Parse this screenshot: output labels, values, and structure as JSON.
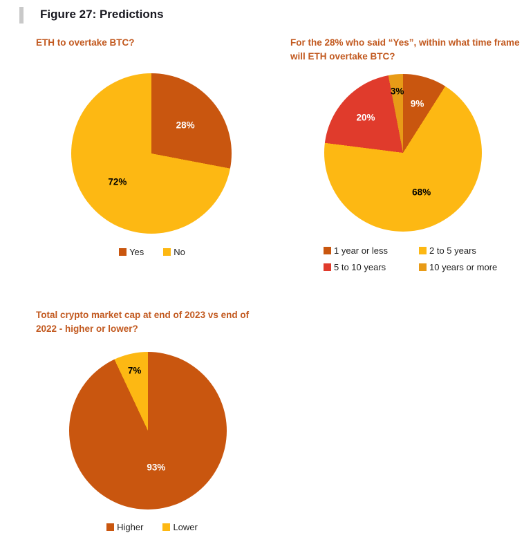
{
  "page": {
    "figure_title": "Figure 27: Predictions"
  },
  "chart_data": [
    {
      "type": "pie",
      "title": "ETH to overtake BTC?",
      "labels": [
        "Yes",
        "No"
      ],
      "values": [
        28,
        72
      ],
      "data_labels": [
        "28%",
        "72%"
      ],
      "slice_colors": [
        "#C9560F",
        "#FDB813"
      ],
      "label_text_colors": [
        "#FFFFFF",
        "#000000"
      ],
      "legend_position": "bottom",
      "start_angle": "top, clockwise"
    },
    {
      "type": "pie",
      "title": "For the 28% who said “Yes”, within what time frame will ETH overtake BTC?",
      "labels": [
        "1 year or less",
        "2 to 5 years",
        "5 to 10 years",
        "10 years or more"
      ],
      "values": [
        9,
        68,
        20,
        3
      ],
      "data_labels": [
        "9%",
        "68%",
        "20%",
        "3%"
      ],
      "slice_colors": [
        "#C9560F",
        "#FDB813",
        "#E03B2C",
        "#E89B17"
      ],
      "label_text_colors": [
        "#FFFFFF",
        "#000000",
        "#FFFFFF",
        "#000000"
      ],
      "legend_position": "bottom",
      "start_angle": "top, clockwise"
    },
    {
      "type": "pie",
      "title": "Total crypto market cap at end of 2023 vs end of 2022 - higher or lower?",
      "labels": [
        "Higher",
        "Lower"
      ],
      "values": [
        93,
        7
      ],
      "data_labels": [
        "93%",
        "7%"
      ],
      "slice_colors": [
        "#C9560F",
        "#FDB813"
      ],
      "label_text_colors": [
        "#FFFFFF",
        "#000000"
      ],
      "legend_position": "bottom",
      "start_angle": "top, clockwise"
    }
  ],
  "colors": {
    "slice_dark_orange": "#C9560F",
    "slice_yellow": "#FDB813",
    "slice_red": "#E03B2C",
    "slice_amber": "#E89B17",
    "chart_title_orange": "#C2591F",
    "figure_title_text": "#17171F",
    "accent_bar_gray": "#C9C9C9",
    "legend_text": "#1F1F1F"
  }
}
